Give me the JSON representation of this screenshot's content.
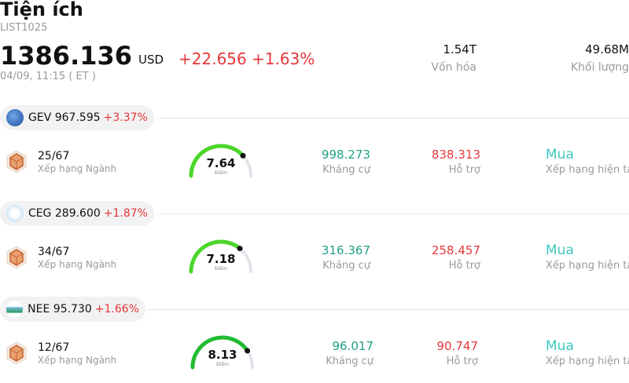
{
  "header": {
    "title": "Tiện ích",
    "code": "LIST1025",
    "price": "1386.136",
    "currency": "USD",
    "change": "+22.656 +1.63%",
    "time": "04/09, 11:15  ( ET )",
    "market_cap_value": "1.54T",
    "market_cap_label": "Vốn hóa",
    "volume_value": "49.68M",
    "volume_label": "Khối lượng"
  },
  "stocks": [
    {
      "ticker": "GEV",
      "price": "967.595",
      "change_pct": "+3.37%",
      "logo_icon": "ge-vernova-logo-icon",
      "rank_value": "25/67",
      "rank_label": "Xếp hạng Ngành",
      "score": "7.64",
      "score_fraction": 0.764,
      "score_label": "Điểm",
      "resistance_value": "998.273",
      "resistance_label": "Kháng cự",
      "support_value": "838.313",
      "support_label": "Hỗ trợ",
      "rating": "Mua",
      "rating_label": "Xếp hạng hiện tại"
    },
    {
      "ticker": "CEG",
      "price": "289.600",
      "change_pct": "+1.87%",
      "logo_icon": "constellation-logo-icon",
      "rank_value": "34/67",
      "rank_label": "Xếp hạng Ngành",
      "score": "7.18",
      "score_fraction": 0.718,
      "score_label": "Điểm",
      "resistance_value": "316.367",
      "resistance_label": "Kháng cự",
      "support_value": "258.457",
      "support_label": "Hỗ trợ",
      "rating": "Mua",
      "rating_label": "Xếp hạng hiện tại"
    },
    {
      "ticker": "NEE",
      "price": "95.730",
      "change_pct": "+1.66%",
      "logo_icon": "nextera-logo-icon",
      "rank_value": "12/67",
      "rank_label": "Xếp hạng Ngành",
      "score": "8.13",
      "score_fraction": 0.813,
      "score_label": "Điểm",
      "resistance_value": "96.017",
      "resistance_label": "Kháng cự",
      "support_value": "90.747",
      "support_label": "Hỗ trợ",
      "rating": "Mua",
      "rating_label": "Xếp hạng hiện tại"
    }
  ],
  "colors": {
    "positive": "#e5383b",
    "resistance": "#1f9e84",
    "rating": "#3ec9c0",
    "gauge_track": "#e2e2ea"
  }
}
